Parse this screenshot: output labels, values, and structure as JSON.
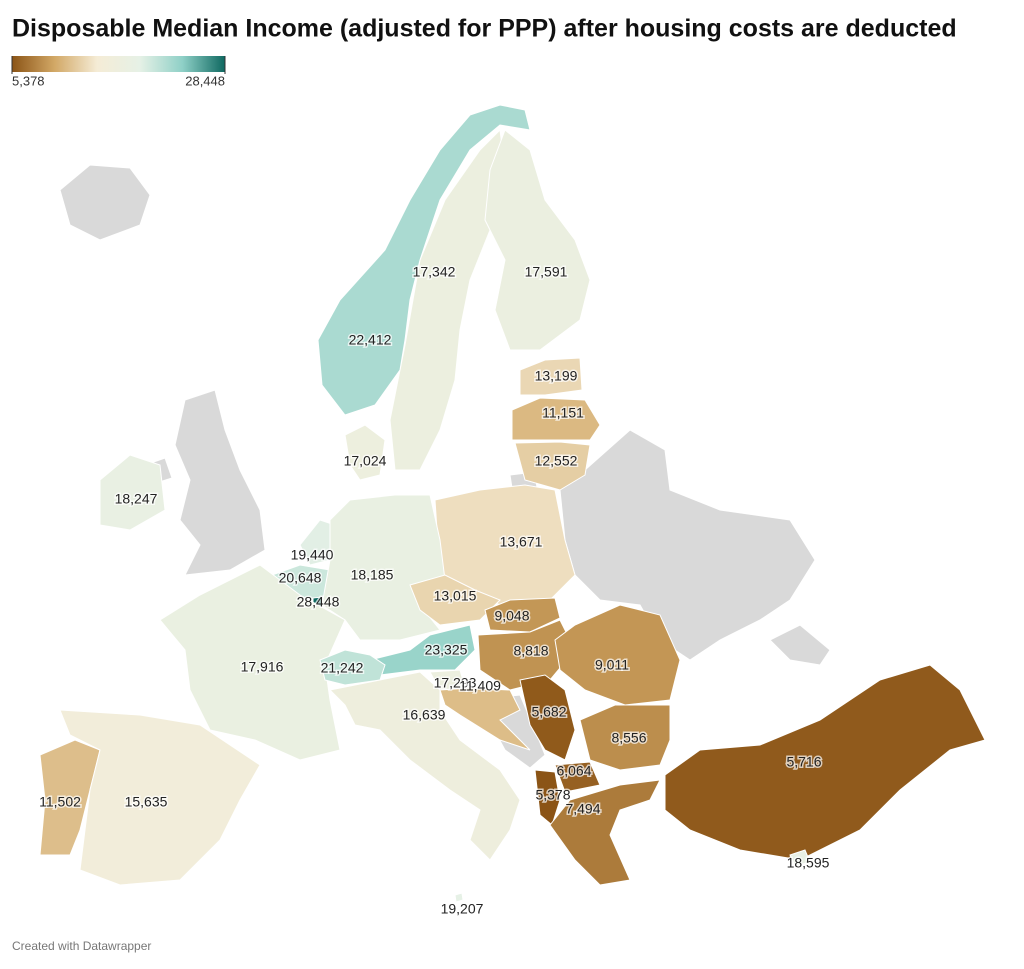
{
  "title": "Disposable Median Income (adjusted for PPP) after housing costs are deducted",
  "legend": {
    "min": {
      "value": 5378,
      "label": "5,378"
    },
    "max": {
      "value": 28448,
      "label": "28,448"
    },
    "colors": [
      "#8b5416",
      "#d2a866",
      "#f5ecd6",
      "#e6f1e6",
      "#8fd0c7",
      "#0e6860"
    ]
  },
  "regions": [
    {
      "value": 17342,
      "label": "17,342"
    },
    {
      "value": 17591,
      "label": "17,591"
    },
    {
      "value": 22412,
      "label": "22,412"
    },
    {
      "value": 13199,
      "label": "13,199"
    },
    {
      "value": 11151,
      "label": "11,151"
    },
    {
      "value": 12552,
      "label": "12,552"
    },
    {
      "value": 17024,
      "label": "17,024"
    },
    {
      "value": 18247,
      "label": "18,247"
    },
    {
      "value": 13671,
      "label": "13,671"
    },
    {
      "value": 19440,
      "label": "19,440"
    },
    {
      "value": 20648,
      "label": "20,648"
    },
    {
      "value": 18185,
      "label": "18,185"
    },
    {
      "value": 28448,
      "label": "28,448"
    },
    {
      "value": 13015,
      "label": "13,015"
    },
    {
      "value": 9048,
      "label": "9,048"
    },
    {
      "value": 8818,
      "label": "8,818"
    },
    {
      "value": 9011,
      "label": "9,011"
    },
    {
      "value": 23325,
      "label": "23,325"
    },
    {
      "value": 17916,
      "label": "17,916"
    },
    {
      "value": 21242,
      "label": "21,242"
    },
    {
      "value": 17293,
      "label": "17,293"
    },
    {
      "value": 11409,
      "label": "11,409"
    },
    {
      "value": 16639,
      "label": "16,639"
    },
    {
      "value": 5682,
      "label": "5,682"
    },
    {
      "value": 8556,
      "label": "8,556"
    },
    {
      "value": 6064,
      "label": "6,064"
    },
    {
      "value": 5716,
      "label": "5,716"
    },
    {
      "value": 5378,
      "label": "5,378"
    },
    {
      "value": 7494,
      "label": "7,494"
    },
    {
      "value": 11502,
      "label": "11,502"
    },
    {
      "value": 15635,
      "label": "15,635"
    },
    {
      "value": 18595,
      "label": "18,595"
    },
    {
      "value": 19207,
      "label": "19,207"
    }
  ],
  "footer": "Created with Datawrapper"
}
